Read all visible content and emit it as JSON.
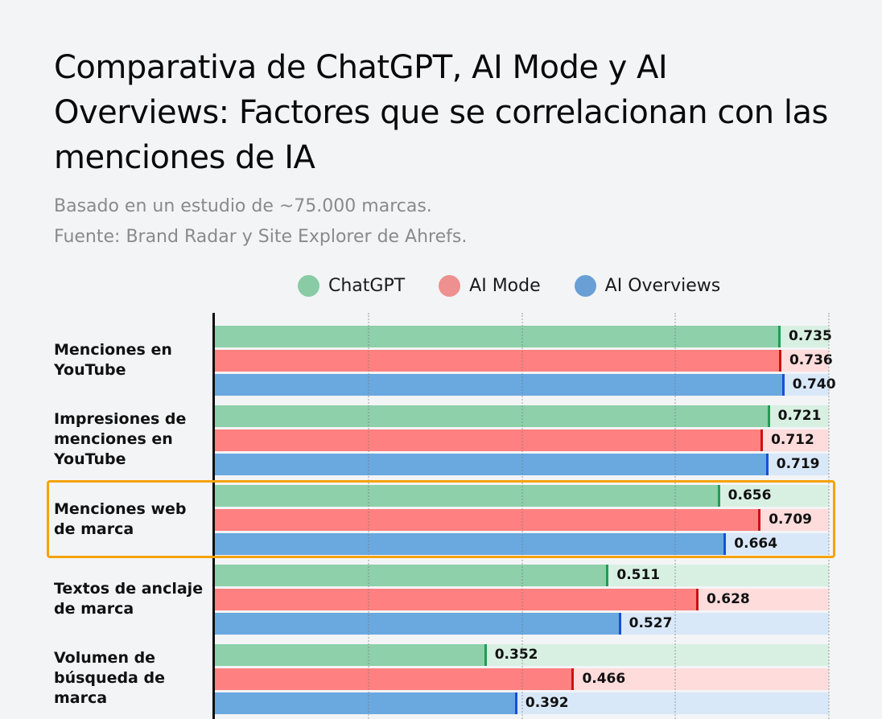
{
  "header": {
    "title": "Comparativa de ChatGPT, AI Mode y AI Overviews: Factores que se correlacionan con las menciones de IA",
    "subtitle_lines": [
      "Basado en un estudio de ~75.000 marcas.",
      "Fuente: Brand Radar y Site Explorer de Ahrefs."
    ]
  },
  "legend": [
    {
      "label": "ChatGPT",
      "color": "#88cba5"
    },
    {
      "label": "AI Mode",
      "color": "#ee9090"
    },
    {
      "label": "AI Overviews",
      "color": "#6a9fd6"
    }
  ],
  "colors": {
    "ChatGPT": {
      "fill": "#8dd0aa",
      "track": "#d8f0e2",
      "cap": "#1f9d55"
    },
    "AI Mode": {
      "fill": "#ff8080",
      "track": "#fedcdc",
      "cap": "#cc1111"
    },
    "AI Overviews": {
      "fill": "#6aa8e0",
      "track": "#d9e8f8",
      "cap": "#1452d6"
    },
    "highlight": "#f5a30a"
  },
  "highlighted_category_index": 2,
  "chart_data": {
    "type": "bar",
    "orientation": "horizontal",
    "title": "Comparativa de ChatGPT, AI Mode y AI Overviews: Factores que se correlacionan con las menciones de IA",
    "subtitle": "Basado en un estudio de ~75.000 marcas. Fuente: Brand Radar y Site Explorer de Ahrefs.",
    "xlabel": "",
    "ylabel": "",
    "xlim": [
      0,
      0.8
    ],
    "grid": true,
    "gridlines_at": [
      0.2,
      0.4,
      0.6,
      0.8
    ],
    "legend_position": "top",
    "categories": [
      "Menciones en YouTube",
      "Impresiones de menciones en YouTube",
      "Menciones web de marca",
      "Textos de anclaje de marca",
      "Volumen de búsqueda de marca"
    ],
    "series": [
      {
        "name": "ChatGPT",
        "values": [
          0.735,
          0.721,
          0.656,
          0.511,
          0.352
        ]
      },
      {
        "name": "AI Mode",
        "values": [
          0.736,
          0.712,
          0.709,
          0.628,
          0.466
        ]
      },
      {
        "name": "AI Overviews",
        "values": [
          0.74,
          0.719,
          0.664,
          0.527,
          0.392
        ]
      }
    ]
  }
}
